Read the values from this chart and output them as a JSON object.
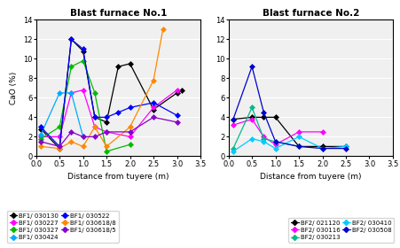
{
  "title1": "Blast furnace No.1",
  "title2": "Blast furnace No.2",
  "xlabel": "Distance from tuyere (m)",
  "ylabel": "CaO (%)",
  "ylim": [
    0,
    14
  ],
  "xlim": [
    0,
    3.5
  ],
  "yticks": [
    0,
    2,
    4,
    6,
    8,
    10,
    12,
    14
  ],
  "xticks": [
    0,
    0.5,
    1,
    1.5,
    2,
    2.5,
    3,
    3.5
  ],
  "bf1_series": [
    {
      "label": "BF1/ 030130",
      "color": "#000000",
      "marker": "D",
      "x": [
        0.1,
        0.5,
        0.75,
        1.0,
        1.25,
        1.5,
        1.75,
        2.0,
        2.5,
        3.0,
        3.1
      ],
      "y": [
        2.8,
        0.8,
        12.0,
        10.8,
        4.0,
        3.5,
        9.2,
        9.5,
        4.8,
        6.5,
        6.8
      ]
    },
    {
      "label": "BF1/ 030227",
      "color": "#ff00ff",
      "marker": "D",
      "x": [
        0.1,
        0.5,
        0.75,
        1.0,
        1.25,
        1.5,
        2.0,
        2.5,
        3.0
      ],
      "y": [
        2.0,
        2.0,
        6.5,
        6.8,
        3.0,
        2.5,
        2.0,
        5.0,
        6.8
      ]
    },
    {
      "label": "BF1/ 030327",
      "color": "#00bb00",
      "marker": "D",
      "x": [
        0.1,
        0.5,
        0.75,
        1.0,
        1.25,
        1.5,
        2.0
      ],
      "y": [
        1.8,
        3.0,
        9.2,
        9.8,
        6.5,
        0.5,
        1.2
      ]
    },
    {
      "label": "BF1/ 030424",
      "color": "#00aaff",
      "marker": "D",
      "x": [
        0.1,
        0.5,
        0.75,
        1.0
      ],
      "y": [
        2.2,
        6.5,
        6.5,
        2.0
      ]
    },
    {
      "label": "BF1/ 030522",
      "color": "#0000ff",
      "marker": "D",
      "x": [
        0.1,
        0.5,
        0.75,
        1.0,
        1.25,
        1.5,
        1.75,
        2.0,
        2.5,
        3.0
      ],
      "y": [
        3.0,
        1.0,
        12.0,
        11.0,
        4.0,
        4.0,
        4.5,
        5.0,
        5.5,
        4.2
      ]
    },
    {
      "label": "BF1/ 030618/8",
      "color": "#ff8800",
      "marker": "D",
      "x": [
        0.1,
        0.5,
        0.75,
        1.0,
        1.25,
        1.5,
        2.0,
        2.5,
        2.7
      ],
      "y": [
        1.0,
        0.8,
        1.5,
        1.0,
        3.0,
        1.0,
        3.0,
        7.8,
        13.0
      ]
    },
    {
      "label": "BF1/ 030618/5",
      "color": "#8800cc",
      "marker": "D",
      "x": [
        0.1,
        0.5,
        0.75,
        1.0,
        1.25,
        1.5,
        2.0,
        2.5,
        3.0
      ],
      "y": [
        1.5,
        1.0,
        2.5,
        2.0,
        2.0,
        2.5,
        2.5,
        4.0,
        3.5
      ]
    }
  ],
  "bf2_series": [
    {
      "label": "BF2/ 021120",
      "color": "#000000",
      "marker": "D",
      "x": [
        0.1,
        0.5,
        0.75,
        1.0,
        1.5,
        2.0,
        2.5
      ],
      "y": [
        3.8,
        4.0,
        4.0,
        4.0,
        1.0,
        1.0,
        1.0
      ]
    },
    {
      "label": "BF2/ 030116",
      "color": "#ff00ff",
      "marker": "D",
      "x": [
        0.1,
        0.5,
        0.75,
        1.0,
        1.5,
        2.0
      ],
      "y": [
        3.2,
        3.8,
        2.0,
        1.2,
        2.5,
        2.5
      ]
    },
    {
      "label": "BF2/ 030213",
      "color": "#00bb88",
      "marker": "D",
      "x": [
        0.1,
        0.5,
        0.75,
        1.0,
        1.5
      ],
      "y": [
        0.8,
        5.0,
        1.8,
        1.5,
        1.0
      ]
    },
    {
      "label": "BF2/ 030410",
      "color": "#00ccff",
      "marker": "D",
      "x": [
        0.1,
        0.5,
        0.75,
        1.0,
        1.5,
        2.0,
        2.5
      ],
      "y": [
        0.5,
        1.8,
        1.5,
        0.8,
        2.0,
        0.8,
        1.0
      ]
    },
    {
      "label": "BF2/ 030508",
      "color": "#0000cc",
      "marker": "D",
      "x": [
        0.1,
        0.5,
        0.75,
        1.0,
        1.5,
        2.0,
        2.5
      ],
      "y": [
        3.8,
        9.2,
        4.5,
        1.5,
        1.0,
        0.8,
        0.8
      ]
    }
  ],
  "bg_color": "#f0f0f0",
  "grid_color": "#ffffff"
}
